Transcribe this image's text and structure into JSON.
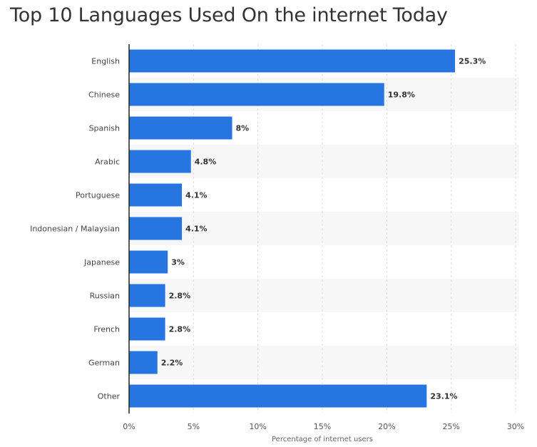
{
  "title": "Top 10 Languages Used On the internet Today",
  "colors": {
    "bar": "#2775E1",
    "stripe": "#F7F7F7",
    "grid": "#DDDDDD",
    "axis": "#222222"
  },
  "chart_data": {
    "type": "bar",
    "orientation": "horizontal",
    "title": "Top 10 Languages Used On the internet Today",
    "xlabel": "Percentage of internet users",
    "ylabel": "",
    "xlim": [
      0,
      30
    ],
    "xticks": [
      0,
      5,
      10,
      15,
      20,
      25,
      30
    ],
    "xtick_labels": [
      "0%",
      "5%",
      "10%",
      "15%",
      "20%",
      "25%",
      "30%"
    ],
    "grid": "vertical dashed",
    "categories": [
      "English",
      "Chinese",
      "Spanish",
      "Arabic",
      "Portuguese",
      "Indonesian / Malaysian",
      "Japanese",
      "Russian",
      "French",
      "German",
      "Other"
    ],
    "values": [
      25.3,
      19.8,
      8,
      4.8,
      4.1,
      4.1,
      3,
      2.8,
      2.8,
      2.2,
      23.1
    ],
    "value_labels": [
      "25.3%",
      "19.8%",
      "8%",
      "4.8%",
      "4.1%",
      "4.1%",
      "3%",
      "2.8%",
      "2.8%",
      "2.2%",
      "23.1%"
    ]
  }
}
